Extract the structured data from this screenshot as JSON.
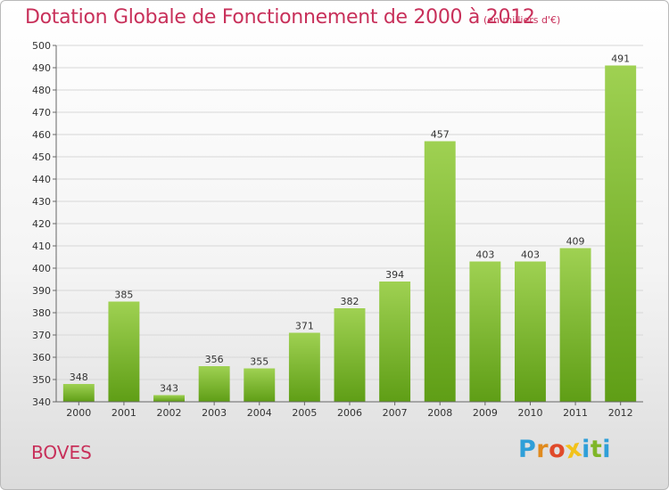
{
  "header": {
    "title": "Dotation Globale de Fonctionnement de 2000 à 2012",
    "subtitle": "(en milliers d'€)"
  },
  "footer": {
    "city": "BOVES",
    "logo_text": "Proxiti"
  },
  "colors": {
    "bar_top": "#9fd152",
    "bar_bottom": "#5f9e16",
    "title": "#c8305a",
    "logo": [
      "#2f9fd8",
      "#e08a1e",
      "#e04a2a",
      "#f2c21b",
      "#2f9fd8",
      "#7fb628",
      "#2f9fd8"
    ]
  },
  "chart_data": {
    "type": "bar",
    "title": "Dotation Globale de Fonctionnement de 2000 à 2012",
    "subtitle": "(en milliers d'€)",
    "xlabel": "",
    "ylabel": "",
    "categories": [
      "2000",
      "2001",
      "2002",
      "2003",
      "2004",
      "2005",
      "2006",
      "2007",
      "2008",
      "2009",
      "2010",
      "2011",
      "2012"
    ],
    "values": [
      348,
      385,
      343,
      356,
      355,
      371,
      382,
      394,
      457,
      403,
      403,
      409,
      491
    ],
    "ylim": [
      340,
      500
    ],
    "yticks": [
      340,
      350,
      360,
      370,
      380,
      390,
      400,
      410,
      420,
      430,
      440,
      450,
      460,
      470,
      480,
      490,
      500
    ],
    "grid": true,
    "legend": "none"
  }
}
